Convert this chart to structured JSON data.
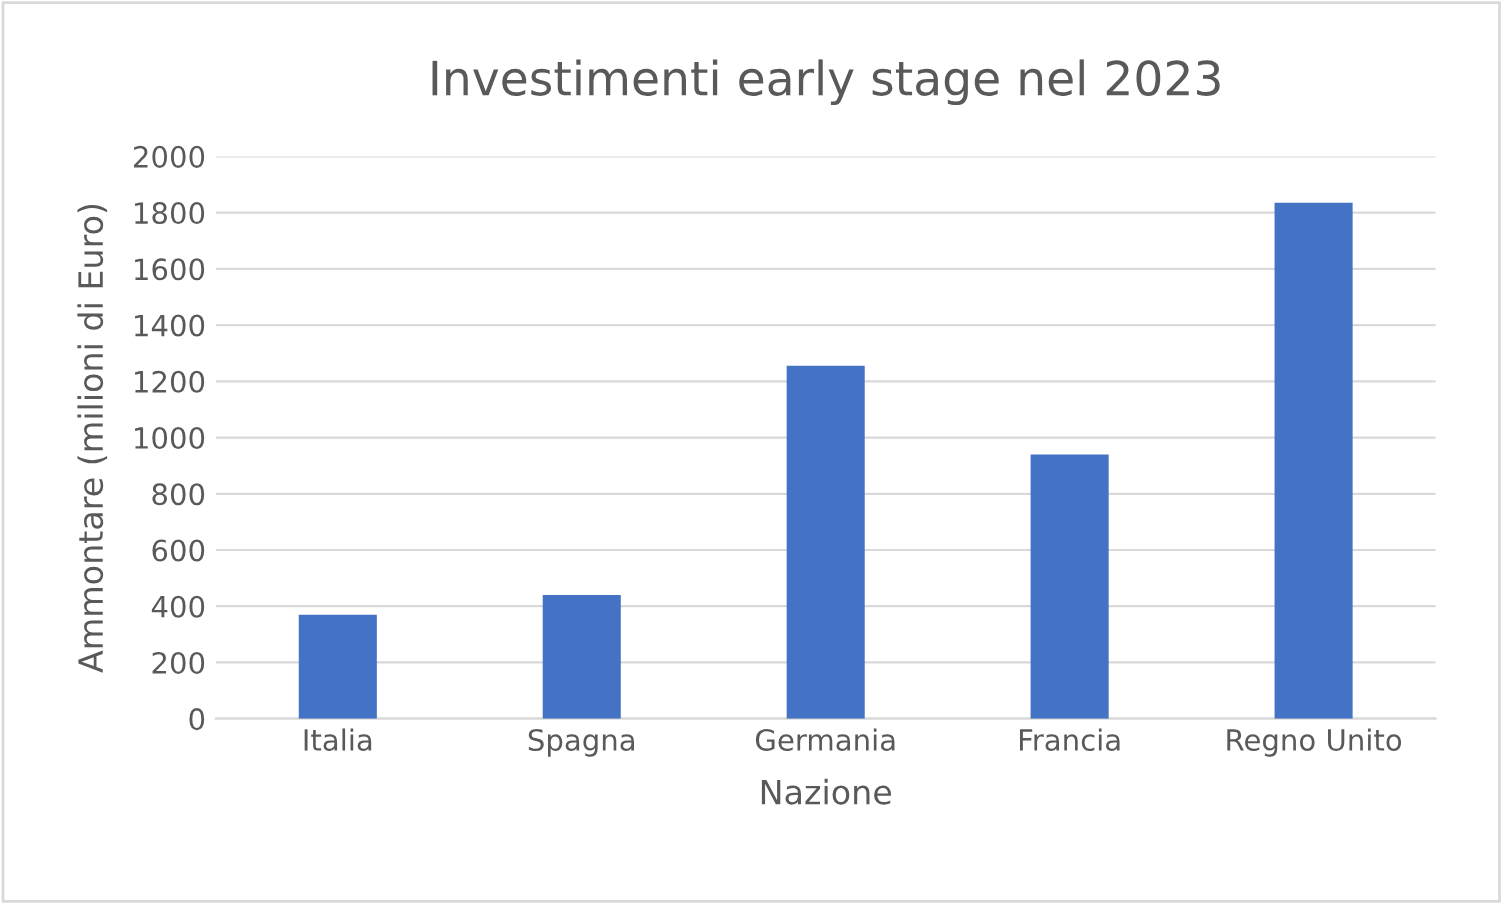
{
  "chart_data": {
    "type": "bar",
    "title": "Investimenti early stage nel 2023",
    "xlabel": "Nazione",
    "ylabel": "Ammontare (milioni di Euro)",
    "categories": [
      "Italia",
      "Spagna",
      "Germania",
      "Francia",
      "Regno Unito"
    ],
    "values": [
      370,
      440,
      1255,
      940,
      1835
    ],
    "color": "#4472c4",
    "ylim": [
      0,
      2000
    ],
    "yticks": [
      0,
      200,
      400,
      600,
      800,
      1000,
      1200,
      1400,
      1600,
      1800,
      2000
    ],
    "grid": "y",
    "legend": false
  }
}
